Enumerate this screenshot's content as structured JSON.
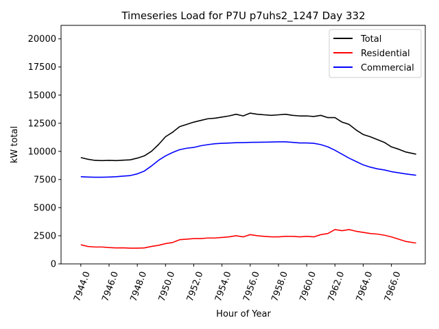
{
  "chart_data": {
    "type": "line",
    "title": "Timeseries Load for P7U p7uhs2_1247  Day 332",
    "xlabel": "Hour of Year",
    "ylabel": "kW total",
    "xlim": [
      7942.6,
      7968.4
    ],
    "ylim": [
      0,
      21200
    ],
    "xticks": [
      7944,
      7946,
      7948,
      7950,
      7952,
      7954,
      7956,
      7958,
      7960,
      7962,
      7964,
      7966
    ],
    "xtick_labels": [
      "7944.0",
      "7946.0",
      "7948.0",
      "7950.0",
      "7952.0",
      "7954.0",
      "7956.0",
      "7958.0",
      "7960.0",
      "7962.0",
      "7964.0",
      "7966.0"
    ],
    "yticks": [
      0,
      2500,
      5000,
      7500,
      10000,
      12500,
      15000,
      17500,
      20000
    ],
    "ytick_labels": [
      "0",
      "2500",
      "5000",
      "7500",
      "10000",
      "12500",
      "15000",
      "17500",
      "20000"
    ],
    "grid": false,
    "legend_position": "top-right",
    "x": [
      7944.0,
      7944.5,
      7945.0,
      7945.5,
      7946.0,
      7946.5,
      7947.0,
      7947.5,
      7948.0,
      7948.5,
      7949.0,
      7949.5,
      7950.0,
      7950.5,
      7951.0,
      7951.5,
      7952.0,
      7952.5,
      7953.0,
      7953.5,
      7954.0,
      7954.5,
      7955.0,
      7955.5,
      7956.0,
      7956.5,
      7957.0,
      7957.5,
      7958.0,
      7958.5,
      7959.0,
      7959.5,
      7960.0,
      7960.5,
      7961.0,
      7961.5,
      7962.0,
      7962.5,
      7963.0,
      7963.5,
      7964.0,
      7964.5,
      7965.0,
      7965.5,
      7966.0,
      7966.5,
      7967.0,
      7967.75
    ],
    "series": [
      {
        "name": "Total",
        "color": "#000000",
        "values": [
          9450,
          9300,
          9200,
          9180,
          9200,
          9180,
          9220,
          9250,
          9400,
          9600,
          10000,
          10600,
          11300,
          11700,
          12200,
          12400,
          12600,
          12750,
          12900,
          12950,
          13050,
          13150,
          13300,
          13150,
          13400,
          13300,
          13250,
          13200,
          13250,
          13300,
          13200,
          13150,
          13150,
          13100,
          13200,
          13000,
          13000,
          12600,
          12400,
          11900,
          11500,
          11300,
          11050,
          10800,
          10400,
          10200,
          9950,
          9750
        ]
      },
      {
        "name": "Residential",
        "color": "#ff0000",
        "values": [
          1700,
          1550,
          1500,
          1500,
          1450,
          1420,
          1430,
          1400,
          1400,
          1420,
          1550,
          1650,
          1800,
          1900,
          2150,
          2200,
          2250,
          2250,
          2300,
          2300,
          2350,
          2400,
          2500,
          2400,
          2600,
          2500,
          2450,
          2400,
          2400,
          2450,
          2450,
          2400,
          2450,
          2400,
          2600,
          2700,
          3050,
          2950,
          3050,
          2900,
          2800,
          2700,
          2650,
          2550,
          2400,
          2200,
          2000,
          1850
        ]
      },
      {
        "name": "Commercial",
        "color": "#0000ff",
        "values": [
          7750,
          7720,
          7700,
          7700,
          7720,
          7750,
          7800,
          7850,
          8000,
          8250,
          8700,
          9200,
          9600,
          9900,
          10150,
          10280,
          10350,
          10500,
          10600,
          10680,
          10720,
          10740,
          10770,
          10780,
          10800,
          10810,
          10820,
          10830,
          10850,
          10850,
          10800,
          10750,
          10750,
          10720,
          10600,
          10400,
          10100,
          9750,
          9400,
          9100,
          8800,
          8600,
          8450,
          8350,
          8200,
          8100,
          8000,
          7880
        ]
      }
    ]
  }
}
